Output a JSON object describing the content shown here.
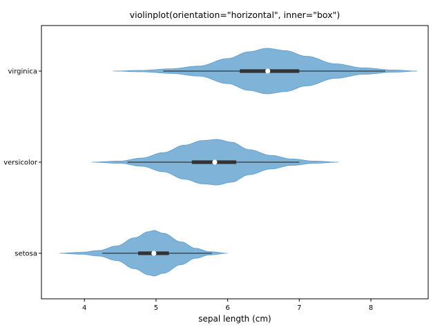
{
  "chart_data": {
    "type": "violin",
    "orientation": "horizontal",
    "inner": "box",
    "title": "violinplot(orientation=\"horizontal\", inner=\"box\")",
    "xlabel": "sepal length (cm)",
    "ylabel": "",
    "xlim": [
      3.4,
      8.8
    ],
    "xticks": [
      4,
      5,
      6,
      7,
      8
    ],
    "categories": [
      "virginica",
      "versicolor",
      "setosa"
    ],
    "grid": false,
    "colors": {
      "violin_fill": "#7fb3d8",
      "violin_edge": "#5a9bd0",
      "box": "#333333",
      "median": "#ffffff"
    },
    "violins": [
      {
        "name": "virginica",
        "kde_min": 4.4,
        "kde_max": 8.65,
        "whisker": [
          5.1,
          8.2
        ],
        "q1": 6.17,
        "median": 6.56,
        "q3": 7.0,
        "density": [
          [
            4.4,
            0.0
          ],
          [
            4.8,
            0.03
          ],
          [
            5.2,
            0.1
          ],
          [
            5.6,
            0.22
          ],
          [
            6.0,
            0.55
          ],
          [
            6.3,
            0.85
          ],
          [
            6.55,
            1.0
          ],
          [
            6.8,
            0.9
          ],
          [
            7.1,
            0.65
          ],
          [
            7.5,
            0.32
          ],
          [
            7.9,
            0.14
          ],
          [
            8.3,
            0.05
          ],
          [
            8.65,
            0.0
          ]
        ]
      },
      {
        "name": "versicolor",
        "kde_min": 4.1,
        "kde_max": 7.55,
        "whisker": [
          4.6,
          7.0
        ],
        "q1": 5.5,
        "median": 5.82,
        "q3": 6.12,
        "density": [
          [
            4.1,
            0.0
          ],
          [
            4.5,
            0.05
          ],
          [
            4.8,
            0.18
          ],
          [
            5.1,
            0.42
          ],
          [
            5.4,
            0.75
          ],
          [
            5.65,
            0.95
          ],
          [
            5.85,
            1.0
          ],
          [
            6.05,
            0.88
          ],
          [
            6.3,
            0.55
          ],
          [
            6.6,
            0.3
          ],
          [
            6.9,
            0.14
          ],
          [
            7.2,
            0.05
          ],
          [
            7.55,
            0.0
          ]
        ]
      },
      {
        "name": "setosa",
        "kde_min": 3.65,
        "kde_max": 6.0,
        "whisker": [
          4.25,
          5.78
        ],
        "q1": 4.75,
        "median": 4.97,
        "q3": 5.18,
        "density": [
          [
            3.65,
            0.0
          ],
          [
            3.95,
            0.04
          ],
          [
            4.2,
            0.12
          ],
          [
            4.45,
            0.32
          ],
          [
            4.7,
            0.68
          ],
          [
            4.9,
            0.95
          ],
          [
            4.97,
            1.0
          ],
          [
            5.1,
            0.88
          ],
          [
            5.35,
            0.5
          ],
          [
            5.55,
            0.22
          ],
          [
            5.75,
            0.07
          ],
          [
            6.0,
            0.0
          ]
        ]
      }
    ]
  }
}
